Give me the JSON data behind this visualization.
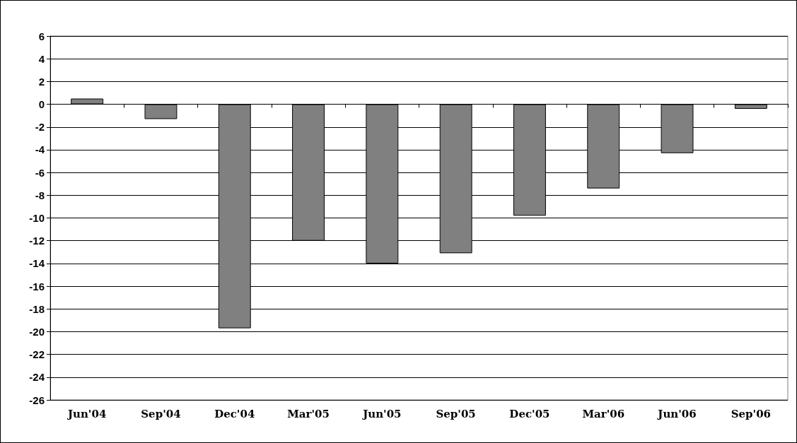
{
  "chart_data": {
    "type": "bar",
    "categories": [
      "Jun'04",
      "Sep'04",
      "Dec'04",
      "Mar'05",
      "Jun'05",
      "Sep'05",
      "Dec'05",
      "Mar'06",
      "Jun'06",
      "Sep'06"
    ],
    "values": [
      0.5,
      -1.3,
      -19.7,
      -12.0,
      -14.0,
      -13.1,
      -9.8,
      -7.4,
      -4.3,
      -0.4
    ],
    "color": "#808080",
    "ylim": [
      -26,
      6
    ],
    "yticks": [
      -26,
      -24,
      -22,
      -20,
      -18,
      -16,
      -14,
      -12,
      -10,
      -8,
      -6,
      -4,
      -2,
      0,
      2,
      4,
      6
    ],
    "grid": "y"
  }
}
